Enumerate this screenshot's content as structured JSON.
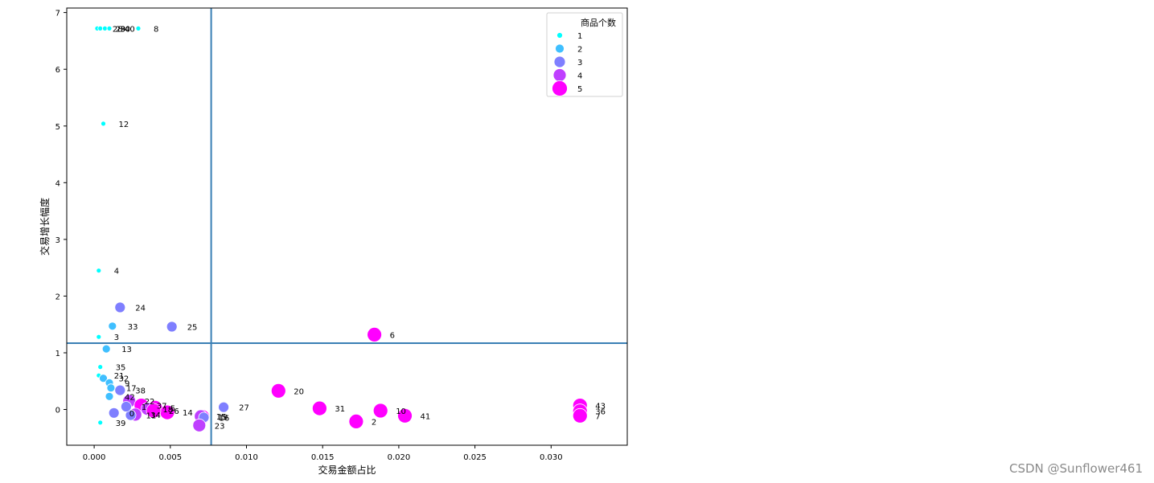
{
  "chart_data": {
    "type": "scatter",
    "xlabel": "交易金额占比",
    "ylabel": "交易增长幅度",
    "xlim": [
      -0.0018,
      0.035
    ],
    "ylim": [
      -0.63,
      7.08
    ],
    "xticks": [
      0.0,
      0.005,
      0.01,
      0.015,
      0.02,
      0.025,
      0.03
    ],
    "xtick_labels": [
      "0.000",
      "0.005",
      "0.010",
      "0.015",
      "0.020",
      "0.025",
      "0.030"
    ],
    "yticks": [
      0,
      1,
      2,
      3,
      4,
      5,
      6,
      7
    ],
    "ytick_labels": [
      "0",
      "1",
      "2",
      "3",
      "4",
      "5",
      "6",
      "7"
    ],
    "grid": false,
    "reference_lines": {
      "x": 0.00768,
      "y": 1.17
    },
    "legend": {
      "title": "商品个数",
      "placement": "top-right",
      "entries": [
        {
          "label": "1",
          "size_level": 1,
          "color": "#00ffff"
        },
        {
          "label": "2",
          "size_level": 2,
          "color": "#3fbfff"
        },
        {
          "label": "3",
          "size_level": 3,
          "color": "#7f7fff"
        },
        {
          "label": "4",
          "size_level": 4,
          "color": "#bf3fff"
        },
        {
          "label": "5",
          "size_level": 5,
          "color": "#ff00ff"
        }
      ]
    },
    "points": [
      {
        "label": "28",
        "x": 0.0002,
        "y": 6.72,
        "count": 1
      },
      {
        "label": "29",
        "x": 0.0004,
        "y": 6.72,
        "count": 1
      },
      {
        "label": "30",
        "x": 0.0007,
        "y": 6.72,
        "count": 1
      },
      {
        "label": "40",
        "x": 0.001,
        "y": 6.72,
        "count": 1
      },
      {
        "label": "8",
        "x": 0.0029,
        "y": 6.72,
        "count": 1
      },
      {
        "label": "12",
        "x": 0.0006,
        "y": 5.04,
        "count": 1
      },
      {
        "label": "4",
        "x": 0.0003,
        "y": 2.45,
        "count": 1
      },
      {
        "label": "24",
        "x": 0.0017,
        "y": 1.8,
        "count": 3
      },
      {
        "label": "33",
        "x": 0.0012,
        "y": 1.47,
        "count": 2
      },
      {
        "label": "25",
        "x": 0.0051,
        "y": 1.46,
        "count": 3
      },
      {
        "label": "3",
        "x": 0.0003,
        "y": 1.28,
        "count": 1
      },
      {
        "label": "6",
        "x": 0.0184,
        "y": 1.32,
        "count": 5
      },
      {
        "label": "13",
        "x": 0.0008,
        "y": 1.07,
        "count": 2
      },
      {
        "label": "35",
        "x": 0.0004,
        "y": 0.75,
        "count": 1
      },
      {
        "label": "21",
        "x": 0.0003,
        "y": 0.6,
        "count": 1
      },
      {
        "label": "32",
        "x": 0.0006,
        "y": 0.55,
        "count": 2
      },
      {
        "label": "9",
        "x": 0.001,
        "y": 0.47,
        "count": 2
      },
      {
        "label": "17",
        "x": 0.0011,
        "y": 0.38,
        "count": 2
      },
      {
        "label": "38",
        "x": 0.0017,
        "y": 0.34,
        "count": 3
      },
      {
        "label": "42",
        "x": 0.001,
        "y": 0.23,
        "count": 2
      },
      {
        "label": "22",
        "x": 0.0023,
        "y": 0.15,
        "count": 4
      },
      {
        "label": "37",
        "x": 0.0031,
        "y": 0.07,
        "count": 5
      },
      {
        "label": "5",
        "x": 0.004,
        "y": 0.03,
        "count": 5
      },
      {
        "label": "14",
        "x": 0.0048,
        "y": -0.05,
        "count": 5
      },
      {
        "label": "18",
        "x": 0.0035,
        "y": 0.01,
        "count": 4
      },
      {
        "label": "26",
        "x": 0.0039,
        "y": -0.02,
        "count": 5
      },
      {
        "label": "34",
        "x": 0.0027,
        "y": -0.09,
        "count": 4
      },
      {
        "label": "11",
        "x": 0.0024,
        "y": -0.1,
        "count": 3
      },
      {
        "label": "1",
        "x": 0.0021,
        "y": 0.05,
        "count": 3
      },
      {
        "label": "0",
        "x": 0.0013,
        "y": -0.06,
        "count": 3
      },
      {
        "label": "39",
        "x": 0.0004,
        "y": -0.23,
        "count": 1
      },
      {
        "label": "19",
        "x": 0.0071,
        "y": -0.13,
        "count": 5
      },
      {
        "label": "15",
        "x": 0.007,
        "y": -0.12,
        "count": 4
      },
      {
        "label": "16",
        "x": 0.0072,
        "y": -0.14,
        "count": 3
      },
      {
        "label": "23",
        "x": 0.0069,
        "y": -0.28,
        "count": 4
      },
      {
        "label": "27",
        "x": 0.0085,
        "y": 0.04,
        "count": 3
      },
      {
        "label": "20",
        "x": 0.0121,
        "y": 0.33,
        "count": 5
      },
      {
        "label": "31",
        "x": 0.0148,
        "y": 0.02,
        "count": 5
      },
      {
        "label": "2",
        "x": 0.0172,
        "y": -0.21,
        "count": 5
      },
      {
        "label": "10",
        "x": 0.0188,
        "y": -0.02,
        "count": 5
      },
      {
        "label": "41",
        "x": 0.0204,
        "y": -0.11,
        "count": 5
      },
      {
        "label": "43",
        "x": 0.0319,
        "y": 0.07,
        "count": 5
      },
      {
        "label": "36",
        "x": 0.0319,
        "y": -0.03,
        "count": 5
      },
      {
        "label": "7",
        "x": 0.0319,
        "y": -0.11,
        "count": 5
      }
    ]
  },
  "watermark": "CSDN @Sunflower461"
}
